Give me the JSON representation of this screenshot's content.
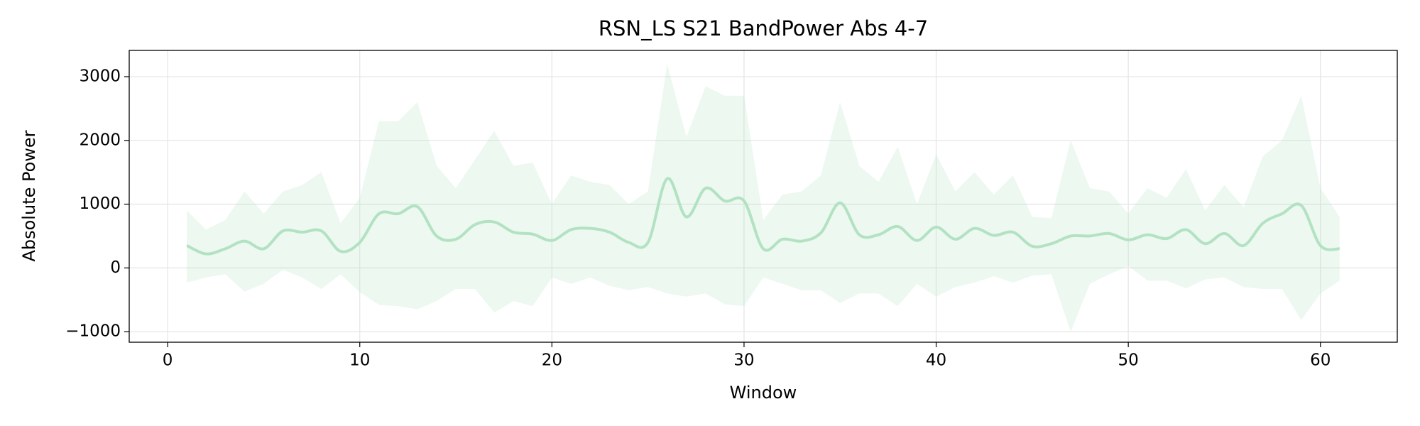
{
  "chart_data": {
    "type": "line",
    "title": "RSN_LS S21 BandPower Abs 4-7",
    "xlabel": "Window",
    "ylabel": "Absolute Power",
    "x": [
      1,
      2,
      3,
      4,
      5,
      6,
      7,
      8,
      9,
      10,
      11,
      12,
      13,
      14,
      15,
      16,
      17,
      18,
      19,
      20,
      21,
      22,
      23,
      24,
      25,
      26,
      27,
      28,
      29,
      30,
      31,
      32,
      33,
      34,
      35,
      36,
      37,
      38,
      39,
      40,
      41,
      42,
      43,
      44,
      45,
      46,
      47,
      48,
      49,
      50,
      51,
      52,
      53,
      54,
      55,
      56,
      57,
      58,
      59,
      60,
      61
    ],
    "series": [
      {
        "color": "#b3e2c3",
        "values": [
          350,
          220,
          300,
          420,
          300,
          580,
          560,
          580,
          260,
          400,
          850,
          850,
          960,
          500,
          450,
          680,
          720,
          560,
          530,
          430,
          600,
          620,
          560,
          400,
          400,
          1400,
          800,
          1250,
          1050,
          1050,
          300,
          450,
          420,
          550,
          1020,
          520,
          520,
          650,
          430,
          640,
          450,
          620,
          510,
          560,
          340,
          380,
          500,
          500,
          540,
          440,
          520,
          460,
          600,
          380,
          540,
          350,
          700,
          850,
          980,
          350,
          300
        ],
        "upper": [
          900,
          600,
          750,
          1200,
          850,
          1200,
          1300,
          1500,
          700,
          1100,
          2300,
          2300,
          2600,
          1600,
          1250,
          1700,
          2150,
          1600,
          1650,
          1000,
          1450,
          1350,
          1300,
          1000,
          1200,
          3200,
          2050,
          2850,
          2700,
          2700,
          750,
          1150,
          1200,
          1450,
          2600,
          1600,
          1350,
          1900,
          1000,
          1780,
          1200,
          1500,
          1150,
          1450,
          800,
          780,
          2000,
          1250,
          1200,
          850,
          1250,
          1100,
          1550,
          900,
          1300,
          950,
          1750,
          2000,
          2700,
          1250,
          800
        ],
        "lower": [
          -230,
          -150,
          -100,
          -370,
          -250,
          -30,
          -150,
          -330,
          -100,
          -380,
          -580,
          -600,
          -650,
          -520,
          -330,
          -330,
          -700,
          -520,
          -600,
          -150,
          -250,
          -150,
          -280,
          -350,
          -300,
          -400,
          -450,
          -400,
          -570,
          -600,
          -150,
          -250,
          -350,
          -350,
          -550,
          -400,
          -400,
          -600,
          -250,
          -450,
          -300,
          -230,
          -130,
          -230,
          -120,
          -100,
          -1000,
          -250,
          -100,
          30,
          -200,
          -200,
          -320,
          -180,
          -150,
          -300,
          -330,
          -330,
          -820,
          -400,
          -200
        ]
      }
    ],
    "xlim": [
      -2,
      64
    ],
    "xticks": [
      0,
      10,
      20,
      30,
      40,
      50,
      60
    ],
    "ylim": [
      -1166,
      3412
    ],
    "yticks": [
      {
        "value": -1000,
        "label": "−1000"
      },
      0,
      1000,
      2000,
      3000
    ],
    "grid": true
  }
}
